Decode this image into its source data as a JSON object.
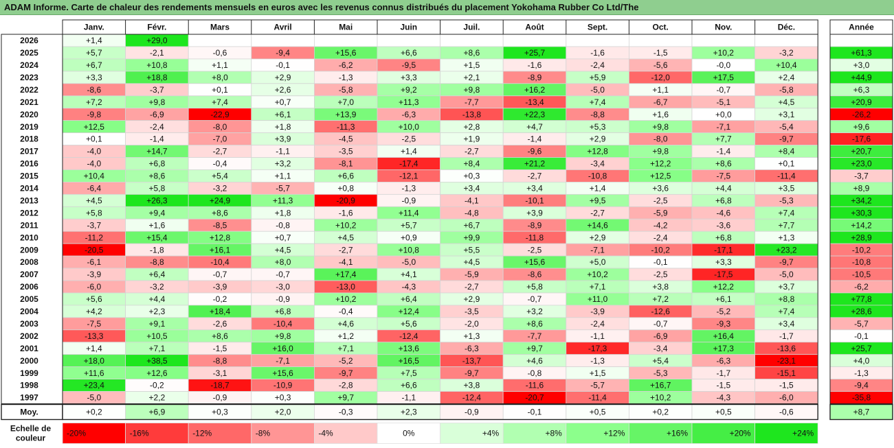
{
  "title": "ADAM Informe. Carte de chaleur des rendements mensuels en euros avec les revenus connus distribués du placement Yokohama Rubber Co Ltd/The",
  "chart_data": {
    "type": "heatmap",
    "months": [
      "Janv.",
      "Févr.",
      "Mars",
      "Avril",
      "Mai",
      "Juin",
      "Juil.",
      "Août",
      "Sept.",
      "Oct.",
      "Nov.",
      "Déc."
    ],
    "year_header": "Année",
    "rows": [
      {
        "year": "2026",
        "values": [
          "+1,4",
          "+29,0",
          null,
          null,
          null,
          null,
          null,
          null,
          null,
          null,
          null,
          null
        ],
        "annual": null
      },
      {
        "year": "2025",
        "values": [
          "+5,7",
          "-2,1",
          "-0,6",
          "-9,4",
          "+15,6",
          "+6,6",
          "+8,6",
          "+25,7",
          "-1,6",
          "-1,5",
          "+10,2",
          "-3,2"
        ],
        "annual": "+61,3"
      },
      {
        "year": "2024",
        "values": [
          "+6,7",
          "+10,8",
          "+1,1",
          "-0,1",
          "-6,2",
          "-9,5",
          "+1,5",
          "-1,6",
          "-2,4",
          "-5,6",
          "-0,0",
          "+10,4"
        ],
        "annual": "+3,0"
      },
      {
        "year": "2023",
        "values": [
          "+3,3",
          "+18,8",
          "+8,0",
          "+2,9",
          "-1,3",
          "+3,3",
          "+2,1",
          "-8,9",
          "+5,9",
          "-12,0",
          "+17,5",
          "+2,4"
        ],
        "annual": "+44,9"
      },
      {
        "year": "2022",
        "values": [
          "-8,6",
          "-3,7",
          "+0,1",
          "+2,6",
          "-5,8",
          "+9,2",
          "+9,8",
          "+16,2",
          "-5,0",
          "+1,1",
          "-0,7",
          "-5,8"
        ],
        "annual": "+6,3"
      },
      {
        "year": "2021",
        "values": [
          "+7,2",
          "+9,8",
          "+7,4",
          "+0,7",
          "+7,0",
          "+11,3",
          "-7,7",
          "-13,4",
          "+7,4",
          "-6,7",
          "-5,1",
          "+4,5"
        ],
        "annual": "+20,9"
      },
      {
        "year": "2020",
        "values": [
          "-9,8",
          "-6,9",
          "-22,9",
          "+6,1",
          "+13,9",
          "-6,3",
          "-13,8",
          "+22,3",
          "-8,8",
          "+1,6",
          "+0,0",
          "+3,1"
        ],
        "annual": "-26,2"
      },
      {
        "year": "2019",
        "values": [
          "+12,5",
          "-2,4",
          "-8,0",
          "+1,8",
          "-11,3",
          "+10,0",
          "+2,8",
          "+4,7",
          "+5,3",
          "+9,8",
          "-7,1",
          "-5,4"
        ],
        "annual": "+9,6"
      },
      {
        "year": "2018",
        "values": [
          "+0,1",
          "-1,4",
          "-7,0",
          "+3,9",
          "-4,5",
          "-2,5",
          "+1,9",
          "-1,4",
          "+2,9",
          "-8,0",
          "+7,7",
          "-9,7"
        ],
        "annual": "-17,6"
      },
      {
        "year": "2017",
        "values": [
          "-4,0",
          "+14,7",
          "-2,7",
          "-1,1",
          "-3,5",
          "+1,4",
          "-2,7",
          "-9,6",
          "+12,8",
          "+9,8",
          "-1,4",
          "+8,4"
        ],
        "annual": "+20,7"
      },
      {
        "year": "2016",
        "values": [
          "-4,0",
          "+6,8",
          "-0,4",
          "+3,2",
          "-8,1",
          "-17,4",
          "+8,4",
          "+21,2",
          "-3,4",
          "+12,2",
          "+8,6",
          "+0,1"
        ],
        "annual": "+23,0"
      },
      {
        "year": "2015",
        "values": [
          "+10,4",
          "+8,6",
          "+5,4",
          "+1,1",
          "+6,6",
          "-12,1",
          "+0,3",
          "-2,7",
          "-10,8",
          "+12,5",
          "-7,5",
          "-11,4"
        ],
        "annual": "-3,7"
      },
      {
        "year": "2014",
        "values": [
          "-6,4",
          "+5,8",
          "-3,2",
          "-5,7",
          "+0,8",
          "-1,3",
          "+3,4",
          "+3,4",
          "+1,4",
          "+3,6",
          "+4,4",
          "+3,5"
        ],
        "annual": "+8,9"
      },
      {
        "year": "2013",
        "values": [
          "+4,5",
          "+26,3",
          "+24,9",
          "+11,3",
          "-20,9",
          "-0,9",
          "-4,1",
          "-10,1",
          "+9,5",
          "-2,5",
          "+6,8",
          "-5,3"
        ],
        "annual": "+34,2"
      },
      {
        "year": "2012",
        "values": [
          "+5,8",
          "+9,4",
          "+8,6",
          "+1,8",
          "-1,6",
          "+11,4",
          "-4,8",
          "+3,9",
          "-2,7",
          "-5,9",
          "-4,6",
          "+7,4"
        ],
        "annual": "+30,3"
      },
      {
        "year": "2011",
        "values": [
          "-3,7",
          "+1,6",
          "-8,5",
          "-0,8",
          "+10,2",
          "+5,7",
          "+6,7",
          "-8,9",
          "+14,6",
          "-4,2",
          "-3,6",
          "+7,7"
        ],
        "annual": "+14,2"
      },
      {
        "year": "2010",
        "values": [
          "-11,2",
          "+15,4",
          "+12,8",
          "+0,7",
          "+4,5",
          "+0,9",
          "+9,9",
          "-11,8",
          "+2,9",
          "-2,4",
          "+6,8",
          "+1,3"
        ],
        "annual": "+28,9"
      },
      {
        "year": "2009",
        "values": [
          "-20,5",
          "-1,8",
          "+16,1",
          "+4,5",
          "-2,7",
          "+10,8",
          "+5,5",
          "-2,5",
          "-7,1",
          "-10,2",
          "-17,1",
          "+23,2"
        ],
        "annual": "-10,2"
      },
      {
        "year": "2008",
        "values": [
          "-6,1",
          "-8,8",
          "-10,4",
          "+8,0",
          "-4,1",
          "-5,0",
          "+4,5",
          "+15,6",
          "+5,0",
          "-0,1",
          "+3,3",
          "-9,7"
        ],
        "annual": "-10,8"
      },
      {
        "year": "2007",
        "values": [
          "-3,9",
          "+6,4",
          "-0,7",
          "-0,7",
          "+17,4",
          "+4,1",
          "-5,9",
          "-8,6",
          "+10,2",
          "-2,5",
          "-17,5",
          "-5,0"
        ],
        "annual": "-10,5"
      },
      {
        "year": "2006",
        "values": [
          "-6,0",
          "-3,2",
          "-3,9",
          "-3,0",
          "-13,0",
          "-4,3",
          "-2,7",
          "+5,8",
          "+7,1",
          "+3,8",
          "+12,2",
          "+3,7"
        ],
        "annual": "-6,2"
      },
      {
        "year": "2005",
        "values": [
          "+5,6",
          "+4,4",
          "-0,2",
          "-0,9",
          "+10,2",
          "+6,4",
          "+2,9",
          "-0,7",
          "+11,0",
          "+7,2",
          "+6,1",
          "+8,8"
        ],
        "annual": "+77,8"
      },
      {
        "year": "2004",
        "values": [
          "+4,2",
          "+2,3",
          "+18,4",
          "+6,8",
          "-0,4",
          "+12,4",
          "-3,5",
          "+3,2",
          "-3,9",
          "-12,6",
          "-5,2",
          "+7,4"
        ],
        "annual": "+28,6"
      },
      {
        "year": "2003",
        "values": [
          "-7,5",
          "+9,1",
          "-2,6",
          "-10,4",
          "+4,6",
          "+5,6",
          "-2,0",
          "+8,6",
          "-2,4",
          "-0,7",
          "-9,3",
          "+3,4"
        ],
        "annual": "-5,7"
      },
      {
        "year": "2002",
        "values": [
          "-13,3",
          "+10,5",
          "+8,6",
          "+9,8",
          "+1,2",
          "-12,4",
          "+1,3",
          "-7,7",
          "-1,1",
          "-6,9",
          "+16,4",
          "-1,7"
        ],
        "annual": "-0,1"
      },
      {
        "year": "2001",
        "values": [
          "+1,4",
          "+7,1",
          "-1,5",
          "+16,0",
          "+7,1",
          "+13,6",
          "-6,3",
          "+9,7",
          "-17,3",
          "-3,4",
          "+17,3",
          "-13,6"
        ],
        "annual": "+25,7"
      },
      {
        "year": "2000",
        "values": [
          "+18,0",
          "+38,5",
          "-8,8",
          "-7,1",
          "-5,2",
          "+16,5",
          "-13,7",
          "+4,6",
          "-1,3",
          "+5,4",
          "-6,3",
          "-23,1"
        ],
        "annual": "+4,0"
      },
      {
        "year": "1999",
        "values": [
          "+11,6",
          "+12,6",
          "-3,1",
          "+15,6",
          "-9,7",
          "+7,5",
          "-9,7",
          "-0,8",
          "+1,5",
          "-5,3",
          "-1,7",
          "-15,1"
        ],
        "annual": "-1,3"
      },
      {
        "year": "1998",
        "values": [
          "+23,4",
          "-0,2",
          "-18,7",
          "-10,9",
          "-2,8",
          "+6,6",
          "+3,8",
          "-11,6",
          "-5,7",
          "+16,7",
          "-1,5",
          "-1,5"
        ],
        "annual": "-9,4"
      },
      {
        "year": "1997",
        "values": [
          "-5,0",
          "+2,2",
          "-0,9",
          "+0,3",
          "+9,7",
          "-1,1",
          "-12,4",
          "-20,7",
          "-11,4",
          "+10,2",
          "-4,3",
          "-6,0"
        ],
        "annual": "-35,8"
      }
    ],
    "average": {
      "label": "Moy.",
      "values": [
        "+0,2",
        "+6,9",
        "+0,3",
        "+2,0",
        "-0,3",
        "+2,3",
        "-0,9",
        "-0,1",
        "+0,5",
        "+0,2",
        "+0,5",
        "-0,6"
      ],
      "annual": "+8,7"
    },
    "scale": {
      "label_lines": [
        "Echelle de",
        "couleur"
      ],
      "stops": [
        "-20%",
        "-16%",
        "-12%",
        "-8%",
        "-4%",
        "0%",
        "+4%",
        "+8%",
        "+12%",
        "+16%",
        "+20%",
        "+24%"
      ],
      "stop_values": [
        -20,
        -16,
        -12,
        -8,
        -4,
        0,
        4,
        8,
        12,
        16,
        20,
        24
      ],
      "colors": [
        "#ff0000",
        "#ff3b3b",
        "#ff6868",
        "#ff9595",
        "#ffc9c9",
        "#ffffff",
        "#d9ffd9",
        "#b1ffb1",
        "#8cff8c",
        "#66f566",
        "#45ee45",
        "#1ee61e"
      ]
    }
  }
}
